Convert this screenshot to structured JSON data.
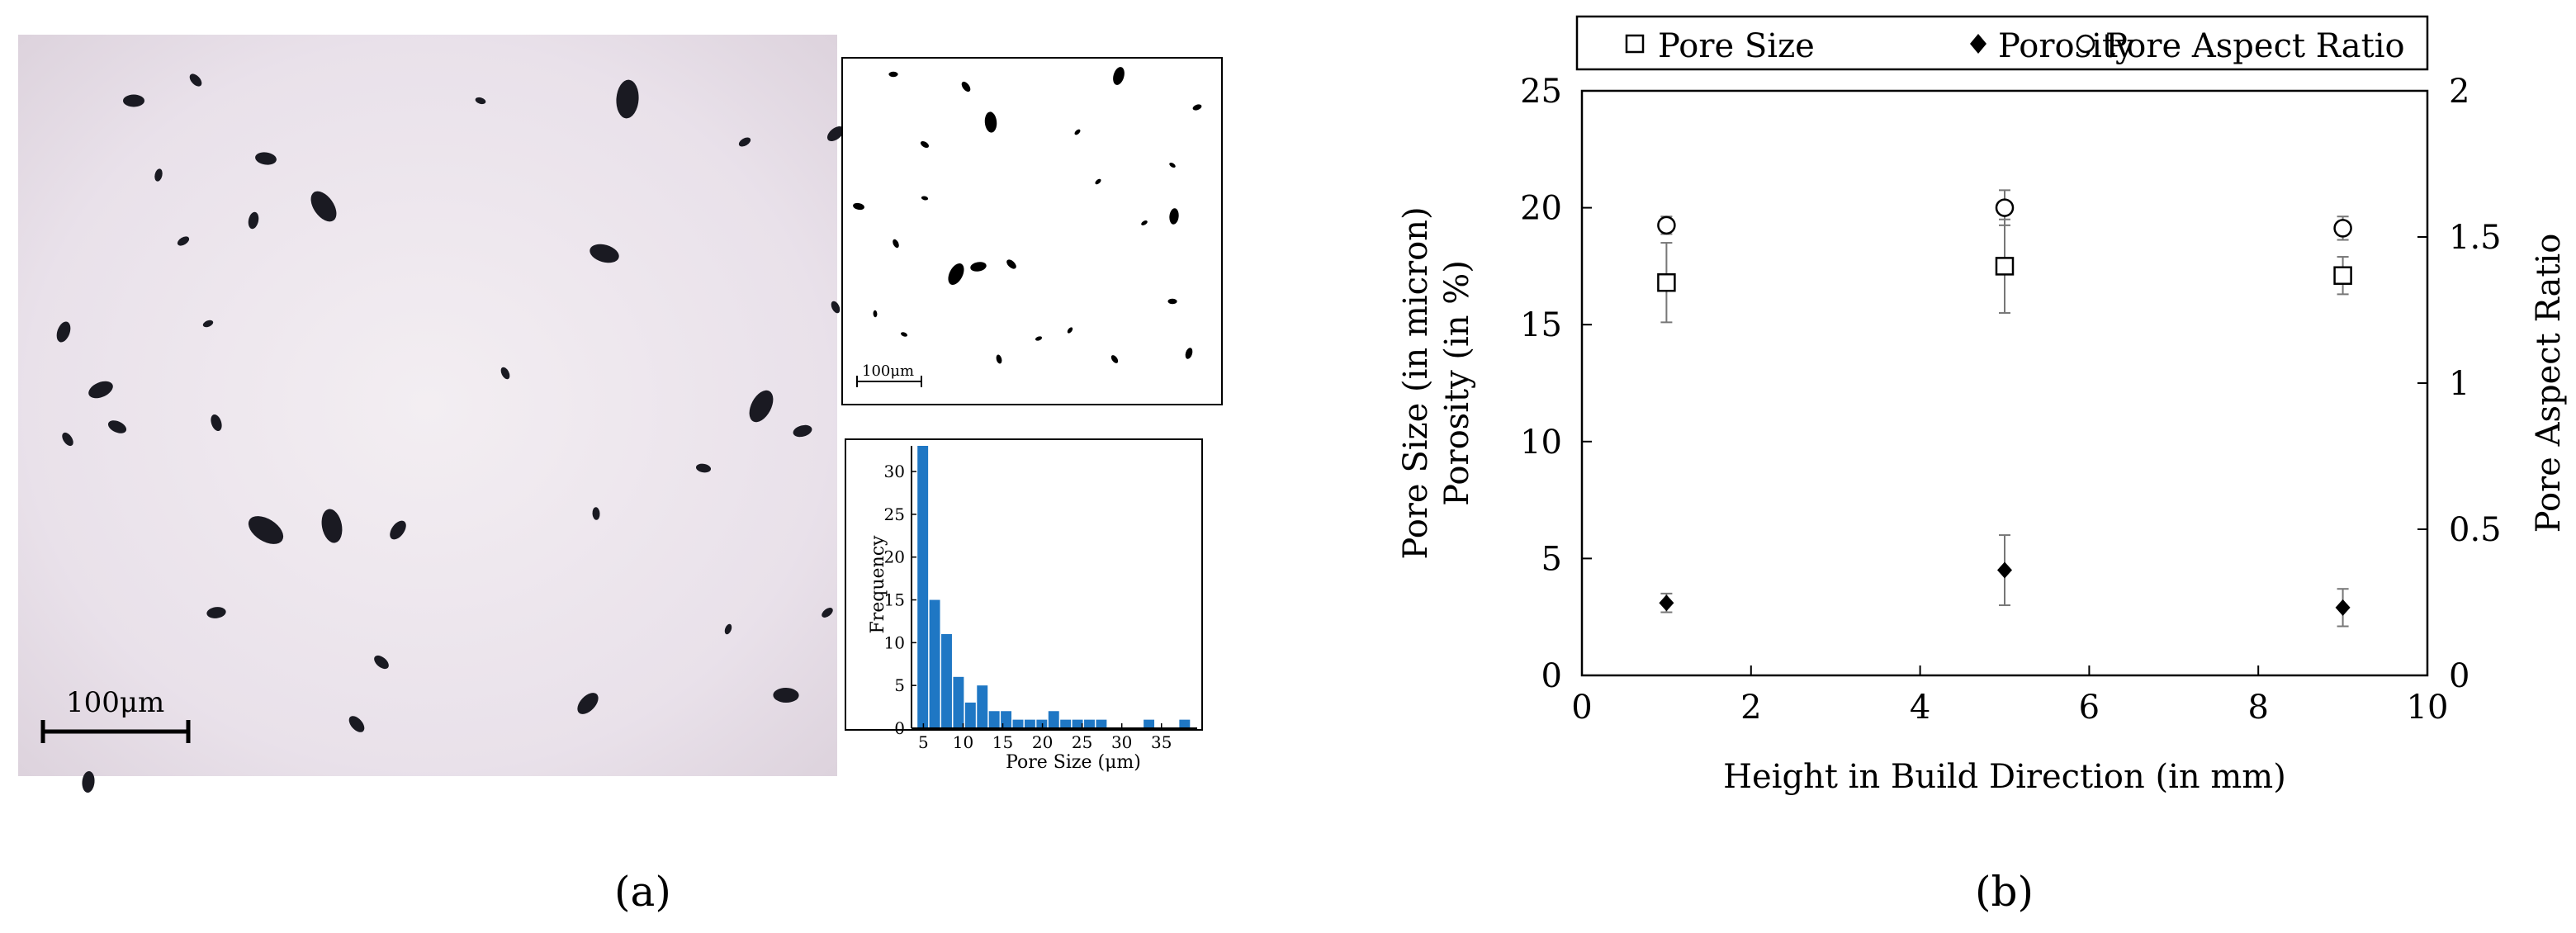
{
  "panel_a": {
    "caption": "(a)",
    "micrograph": {
      "scale_bar_label": "100μm"
    },
    "binary_image": {
      "scale_bar_label": "100μm"
    },
    "histogram": {
      "type": "bar",
      "xlabel": "Pore Size (μm)",
      "ylabel": "Frequency",
      "x_tick_labels": [
        "5",
        "10",
        "15",
        "20",
        "25",
        "30",
        "35"
      ],
      "y_tick_labels": [
        "0",
        "5",
        "10",
        "15",
        "20",
        "25",
        "30"
      ],
      "colors": {
        "bar": "#1f77c4"
      }
    }
  },
  "panel_b": {
    "caption": "(b)",
    "legend_items": [
      "Pore Size",
      "Porosity",
      "Pore Aspect Ratio"
    ],
    "xlabel": "Height in Build Direction (in mm)",
    "ylabel_left_line1": "Pore Size (in micron)",
    "ylabel_left_line2": "Porosity (in %)",
    "ylabel_right": "Pore Aspect Ratio",
    "x_tick_labels": [
      "0",
      "2",
      "4",
      "6",
      "8",
      "10"
    ],
    "y_left_tick_labels": [
      "0",
      "5",
      "10",
      "15",
      "20",
      "25"
    ],
    "y_right_tick_labels": [
      "0",
      "0.5",
      "1",
      "1.5",
      "2"
    ]
  },
  "chart_data": [
    {
      "type": "bar",
      "xlabel": "Pore Size (μm)",
      "ylabel": "Frequency",
      "x": [
        5,
        6.5,
        8,
        9.5,
        11,
        12.5,
        14,
        15.5,
        17,
        18.5,
        20,
        21.5,
        23,
        24.5,
        26,
        27.5,
        29,
        30.5,
        32,
        33.5,
        35,
        36.5,
        38
      ],
      "values": [
        33,
        15,
        11,
        6,
        3,
        5,
        2,
        2,
        1,
        1,
        1,
        2,
        1,
        1,
        1,
        1,
        0,
        0,
        0,
        1,
        0,
        0,
        1
      ],
      "bar_width": 1.5,
      "xlim": [
        3.5,
        39.5
      ],
      "ylim": [
        0,
        33
      ],
      "x_ticks": [
        5,
        10,
        15,
        20,
        25,
        30,
        35
      ],
      "y_ticks": [
        0,
        5,
        10,
        15,
        20,
        25,
        30
      ],
      "grid": false
    },
    {
      "type": "scatter",
      "xlabel": "Height in Build Direction (in mm)",
      "ylabel": "Pore Size (in micron) Porosity (in %)",
      "ylabel_right": "Pore Aspect Ratio",
      "xlim": [
        0,
        10
      ],
      "ylim": [
        0,
        25
      ],
      "ylim_right": [
        0,
        2
      ],
      "x_ticks": [
        0,
        2,
        4,
        6,
        8,
        10
      ],
      "y_ticks": [
        0,
        5,
        10,
        15,
        20,
        25
      ],
      "y_right_ticks": [
        0,
        0.5,
        1,
        1.5,
        2
      ],
      "legend": "top",
      "grid": false,
      "series": [
        {
          "name": "Pore Size",
          "marker": "square",
          "axis": "left",
          "x": [
            1,
            5,
            9
          ],
          "y": [
            16.8,
            17.5,
            17.1
          ],
          "err": [
            1.7,
            2.0,
            0.8
          ]
        },
        {
          "name": "Porosity",
          "marker": "diamond",
          "axis": "left",
          "x": [
            1,
            5,
            9
          ],
          "y": [
            3.1,
            4.5,
            2.9
          ],
          "err": [
            0.4,
            1.5,
            0.8
          ]
        },
        {
          "name": "Pore Aspect Ratio",
          "marker": "circle",
          "axis": "right",
          "x": [
            1,
            5,
            9
          ],
          "y": [
            1.54,
            1.6,
            1.53
          ],
          "err": [
            0.03,
            0.06,
            0.04
          ]
        }
      ]
    }
  ]
}
